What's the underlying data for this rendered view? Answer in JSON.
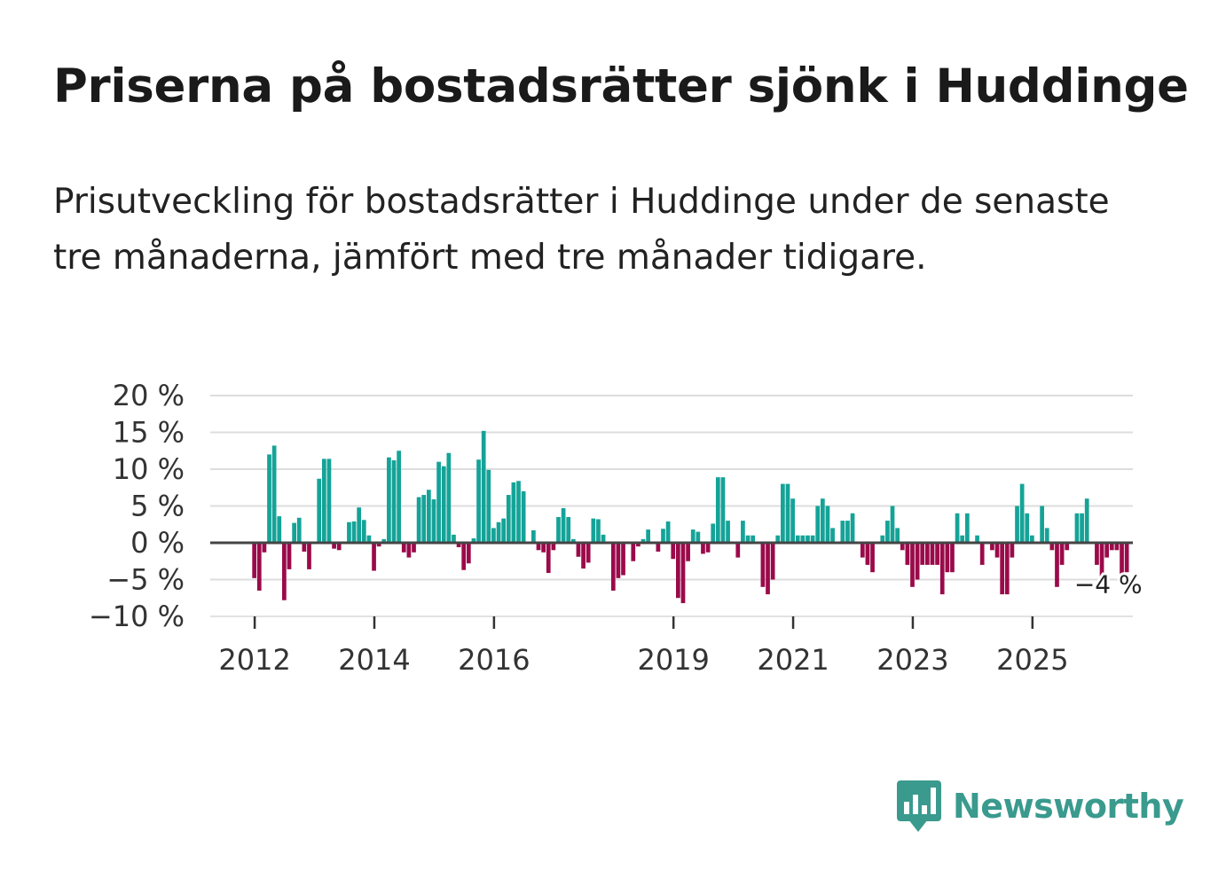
{
  "header": {
    "title": "Priserna på bostadsrätter sjönk i Huddinge",
    "subtitle": "Prisutveckling för bostadsrätter i Huddinge under de senaste tre månaderna, jämfört med tre månader tidigare."
  },
  "brand": {
    "name": "Newsworthy",
    "color": "#3a9a8e",
    "icon": "newsworthy-logo-icon"
  },
  "colors": {
    "positive": "#15a398",
    "negative": "#9b0a4a",
    "grid": "#dddddd",
    "zero": "#444444"
  },
  "chart_data": {
    "type": "bar",
    "title": "",
    "xlabel": "",
    "ylabel": "",
    "ylim": [
      -10,
      20
    ],
    "yticks": [
      20,
      15,
      10,
      5,
      0,
      -5,
      -10
    ],
    "ytick_labels": [
      "20 %",
      "15 %",
      "10 %",
      "5 %",
      "0 %",
      "−5 %",
      "−10 %"
    ],
    "xticks": [
      {
        "label": "2012",
        "year": 2012
      },
      {
        "label": "2014",
        "year": 2014
      },
      {
        "label": "2016",
        "year": 2016
      },
      {
        "label": "2019",
        "year": 2019
      },
      {
        "label": "2021",
        "year": 2021
      },
      {
        "label": "2023",
        "year": 2023
      },
      {
        "label": "2025",
        "year": 2025
      }
    ],
    "start": {
      "year": 2012,
      "month": 1
    },
    "annotation": {
      "label": "−4 %",
      "year": 2025,
      "month": 11
    },
    "values": [
      -4.8,
      -6.5,
      -1.3,
      12,
      13.2,
      3.6,
      -7.8,
      -3.6,
      2.7,
      3.4,
      -1.2,
      -3.6,
      0,
      8.7,
      11.4,
      11.4,
      -0.8,
      -1,
      0,
      2.8,
      2.9,
      4.8,
      3.1,
      1,
      -3.8,
      -0.5,
      0.5,
      11.6,
      11.2,
      12.5,
      -1.3,
      -2,
      -1.3,
      6.2,
      6.5,
      7.2,
      5.9,
      11,
      10.4,
      12.2,
      1.1,
      -0.6,
      -3.7,
      -2.8,
      0.6,
      11.3,
      15.2,
      9.9,
      2,
      2.8,
      3.3,
      6.5,
      8.2,
      8.4,
      7,
      0,
      1.7,
      -1,
      -1.3,
      -4.1,
      -1,
      3.5,
      4.7,
      3.5,
      0.5,
      -1.9,
      -3.5,
      -2.7,
      3.3,
      3.2,
      1.1,
      0,
      -6.5,
      -4.8,
      -4.4,
      0,
      -2.5,
      -0.5,
      0.5,
      1.8,
      0,
      -1.2,
      1.9,
      2.9,
      -2.2,
      -7.5,
      -8.2,
      -2.5,
      1.8,
      1.5,
      -1.5,
      -1.3,
      2.6,
      8.9,
      8.9,
      3,
      0,
      -2,
      3,
      1,
      1,
      0,
      -6,
      -7,
      -5,
      1,
      8,
      8,
      6,
      1,
      1,
      1,
      1,
      5,
      6,
      5,
      2,
      0,
      3,
      3,
      4,
      0,
      -2,
      -3,
      -4,
      0,
      1,
      3,
      5,
      2,
      -1,
      -3,
      -6,
      -5,
      -3,
      -3,
      -3,
      -3,
      -7,
      -4,
      -4,
      4,
      1,
      4,
      0,
      1,
      -3,
      0,
      -1,
      -2,
      -7,
      -7,
      -2,
      5,
      8,
      4,
      1,
      0,
      5,
      2,
      -1,
      -6,
      -3,
      -1,
      0,
      4,
      4,
      6,
      0,
      -3,
      -6,
      -2,
      -1,
      -1,
      -5,
      -4
    ]
  }
}
